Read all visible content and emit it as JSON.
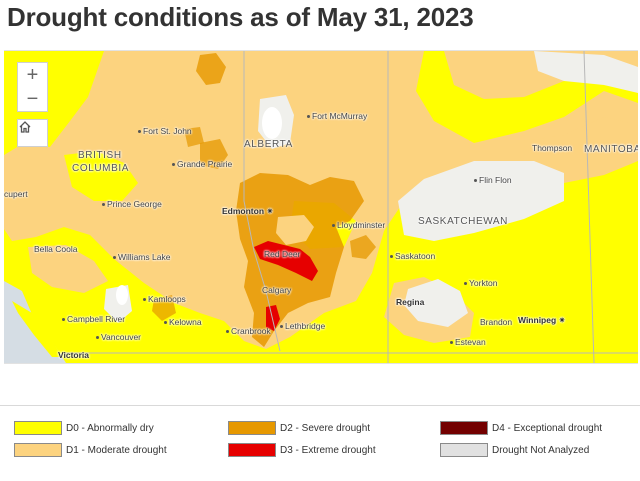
{
  "title": "Drought conditions as of May 31, 2023",
  "map": {
    "controls": {
      "zoom_in": "+",
      "zoom_out": "−",
      "home_icon": "home-icon"
    },
    "places": {
      "fort_st_john": "Fort St. John",
      "fort_mcmurray": "Fort McMurray",
      "grande_prairie": "Grande Prairie",
      "edmonton": "Edmonton",
      "lloydminster": "Lloydminster",
      "prince_george": "Prince George",
      "cupert": "cupert",
      "bella_coola": "Bella Coola",
      "williams_lake": "Williams Lake",
      "red_deer": "Red Deer",
      "saskatoon": "Saskatoon",
      "kamloops": "Kamloops",
      "calgary": "Calgary",
      "campbell_river": "Campbell River",
      "kelowna": "Kelowna",
      "vancouver": "Vancouver",
      "cranbrook": "Cranbrook",
      "lethbridge": "Lethbridge",
      "victoria": "Victoria",
      "regina": "Regina",
      "yorkton": "Yorkton",
      "brandon": "Brandon",
      "winnipeg": "Winnipeg",
      "estevan": "Estevan",
      "thompson": "Thompson",
      "flin_flon": "Flin Flon"
    },
    "provinces": {
      "bc_line1": "BRITISH",
      "bc_line2": "COLUMBIA",
      "alberta": "ALBERTA",
      "saskatchewan": "SASKATCHEWAN",
      "manitoba": "MANITOBA"
    }
  },
  "legend": [
    {
      "label": "D0 - Abnormally dry",
      "color": "#ffff00"
    },
    {
      "label": "D1 - Moderate drought",
      "color": "#fcd37f"
    },
    {
      "label": "D2 - Severe drought",
      "color": "#e69800"
    },
    {
      "label": "D3 - Extreme drought",
      "color": "#e60000"
    },
    {
      "label": "D4 - Exceptional drought",
      "color": "#730000"
    },
    {
      "label": "Drought Not Analyzed",
      "color": "#e1e1e1"
    }
  ],
  "colors": {
    "d0": "#ffff00",
    "d1": "#fcd37f",
    "d2": "#e69800",
    "d3": "#e60000",
    "not_analyzed": "#f0f0f0",
    "water": "#d4dde6"
  }
}
